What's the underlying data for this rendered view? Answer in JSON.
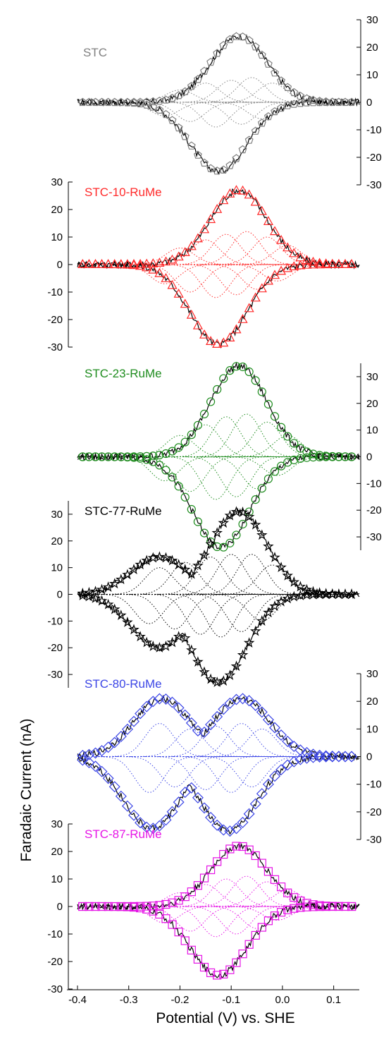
{
  "chart_data": {
    "type": "line",
    "xlabel": "Potential (V)  vs. SHE",
    "ylabel": "Faradaic Current (nA)",
    "xlim": [
      -0.4,
      0.15
    ],
    "xticks": [
      -0.4,
      -0.3,
      -0.2,
      -0.1,
      0.0,
      0.1
    ],
    "xtick_labels": [
      "-0.4",
      "-0.3",
      "-0.2",
      "-0.1",
      "0.0",
      "0.1"
    ],
    "panels": [
      {
        "name": "STC",
        "color": "#808080",
        "marker": "pentagon",
        "axis_side": "right",
        "ylim": [
          -30,
          30
        ],
        "yticks": [
          30,
          20,
          10,
          0,
          -10,
          -20,
          -30
        ],
        "ytick_labels": [
          "30",
          "20",
          "10",
          "0",
          "-10",
          "-20",
          "-30"
        ],
        "peaks": [
          {
            "e": -0.085,
            "h": 24
          }
        ],
        "reductive_peaks": [
          {
            "e": -0.125,
            "h": 25
          }
        ],
        "oxidative_components": [
          {
            "e": -0.2,
            "h": 4.5
          },
          {
            "e": -0.15,
            "h": 7
          },
          {
            "e": -0.1,
            "h": 8
          },
          {
            "e": -0.06,
            "h": 9
          },
          {
            "e": -0.02,
            "h": 7
          }
        ],
        "reductive_components": [
          {
            "e": -0.23,
            "h": 5
          },
          {
            "e": -0.18,
            "h": 7
          },
          {
            "e": -0.13,
            "h": 9
          },
          {
            "e": -0.08,
            "h": 8
          },
          {
            "e": -0.04,
            "h": 6
          }
        ]
      },
      {
        "name": "STC-10-RuMe",
        "color": "#ff2a2a",
        "marker": "triangle",
        "axis_side": "left",
        "ylim": [
          -30,
          30
        ],
        "yticks": [
          30,
          20,
          10,
          0,
          -10,
          -20,
          -30
        ],
        "ytick_labels": [
          "30",
          "20",
          "10",
          "0",
          "-10",
          "-20",
          "-30"
        ],
        "peaks": [
          {
            "e": -0.085,
            "h": 27
          }
        ],
        "reductive_peaks": [
          {
            "e": -0.125,
            "h": 29
          }
        ],
        "oxidative_components": [
          {
            "e": -0.2,
            "h": 6
          },
          {
            "e": -0.15,
            "h": 9
          },
          {
            "e": -0.11,
            "h": 11
          },
          {
            "e": -0.07,
            "h": 12
          },
          {
            "e": -0.03,
            "h": 10
          },
          {
            "e": 0.01,
            "h": 7
          }
        ],
        "reductive_components": [
          {
            "e": -0.23,
            "h": 7
          },
          {
            "e": -0.18,
            "h": 10
          },
          {
            "e": -0.13,
            "h": 12
          },
          {
            "e": -0.09,
            "h": 11
          },
          {
            "e": -0.05,
            "h": 9
          },
          {
            "e": -0.01,
            "h": 6
          }
        ]
      },
      {
        "name": "STC-23-RuMe",
        "color": "#1e8c1e",
        "marker": "circle",
        "axis_side": "right",
        "ylim": [
          -35,
          35
        ],
        "yticks": [
          30,
          20,
          10,
          0,
          -10,
          -20,
          -30
        ],
        "ytick_labels": [
          "30",
          "20",
          "10",
          "0",
          "-10",
          "-20",
          "-30"
        ],
        "peaks": [
          {
            "e": -0.085,
            "h": 34
          }
        ],
        "reductive_peaks": [
          {
            "e": -0.12,
            "h": 34
          }
        ],
        "oxidative_components": [
          {
            "e": -0.2,
            "h": 8
          },
          {
            "e": -0.15,
            "h": 12
          },
          {
            "e": -0.11,
            "h": 15
          },
          {
            "e": -0.07,
            "h": 16
          },
          {
            "e": -0.03,
            "h": 13
          },
          {
            "e": 0.01,
            "h": 8
          }
        ],
        "reductive_components": [
          {
            "e": -0.23,
            "h": 9
          },
          {
            "e": -0.18,
            "h": 13
          },
          {
            "e": -0.13,
            "h": 16
          },
          {
            "e": -0.09,
            "h": 15
          },
          {
            "e": -0.05,
            "h": 12
          },
          {
            "e": -0.01,
            "h": 7
          }
        ]
      },
      {
        "name": "STC-77-RuMe",
        "color": "#000000",
        "marker": "star",
        "axis_side": "left",
        "ylim": [
          -35,
          35
        ],
        "yticks": [
          30,
          20,
          10,
          0,
          -10,
          -20,
          -30
        ],
        "ytick_labels": [
          "30",
          "20",
          "10",
          "0",
          "-10",
          "-20",
          "-30"
        ],
        "peaks": [
          {
            "e": -0.24,
            "h": 14
          },
          {
            "e": -0.085,
            "h": 31
          }
        ],
        "reductive_peaks": [
          {
            "e": -0.24,
            "h": 20
          },
          {
            "e": -0.125,
            "h": 33
          }
        ],
        "oxidative_components": [
          {
            "e": -0.24,
            "h": 10
          },
          {
            "e": -0.19,
            "h": 12
          },
          {
            "e": -0.14,
            "h": 14
          },
          {
            "e": -0.1,
            "h": 15
          },
          {
            "e": -0.06,
            "h": 15
          },
          {
            "e": -0.02,
            "h": 11
          }
        ],
        "reductive_components": [
          {
            "e": -0.26,
            "h": 11
          },
          {
            "e": -0.21,
            "h": 13
          },
          {
            "e": -0.16,
            "h": 15
          },
          {
            "e": -0.12,
            "h": 16
          },
          {
            "e": -0.08,
            "h": 14
          },
          {
            "e": -0.04,
            "h": 10
          }
        ]
      },
      {
        "name": "STC-80-RuMe",
        "color": "#3c46e6",
        "marker": "diamond",
        "axis_side": "right",
        "ylim": [
          -30,
          30
        ],
        "yticks": [
          30,
          20,
          10,
          0,
          -10,
          -20,
          -30
        ],
        "ytick_labels": [
          "30",
          "20",
          "10",
          "0",
          "-10",
          "-20",
          "-30"
        ],
        "peaks": [
          {
            "e": -0.235,
            "h": 21
          },
          {
            "e": -0.08,
            "h": 21
          }
        ],
        "reductive_peaks": [
          {
            "e": -0.255,
            "h": 26
          },
          {
            "e": -0.105,
            "h": 27
          }
        ],
        "oxidative_components": [
          {
            "e": -0.24,
            "h": 12
          },
          {
            "e": -0.18,
            "h": 10
          },
          {
            "e": -0.13,
            "h": 11
          },
          {
            "e": -0.08,
            "h": 12
          },
          {
            "e": -0.04,
            "h": 10
          }
        ],
        "reductive_components": [
          {
            "e": -0.26,
            "h": 13
          },
          {
            "e": -0.21,
            "h": 11
          },
          {
            "e": -0.15,
            "h": 12
          },
          {
            "e": -0.1,
            "h": 13
          },
          {
            "e": -0.06,
            "h": 11
          }
        ]
      },
      {
        "name": "STC-87-RuMe",
        "color": "#e614e6",
        "marker": "square",
        "axis_side": "left",
        "ylim": [
          -30,
          30
        ],
        "yticks": [
          30,
          20,
          10,
          0,
          -10,
          -20,
          -30
        ],
        "ytick_labels": [
          "30",
          "20",
          "10",
          "0",
          "-10",
          "-20",
          "-30"
        ],
        "peaks": [
          {
            "e": -0.085,
            "h": 22
          }
        ],
        "reductive_peaks": [
          {
            "e": -0.125,
            "h": 25
          }
        ],
        "oxidative_components": [
          {
            "e": -0.2,
            "h": 5
          },
          {
            "e": -0.15,
            "h": 8
          },
          {
            "e": -0.11,
            "h": 10
          },
          {
            "e": -0.07,
            "h": 11
          },
          {
            "e": -0.03,
            "h": 9
          },
          {
            "e": 0.01,
            "h": 6
          }
        ],
        "reductive_components": [
          {
            "e": -0.23,
            "h": 6
          },
          {
            "e": -0.18,
            "h": 9
          },
          {
            "e": -0.13,
            "h": 11
          },
          {
            "e": -0.09,
            "h": 10
          },
          {
            "e": -0.05,
            "h": 8
          },
          {
            "e": -0.01,
            "h": 5
          }
        ]
      }
    ]
  }
}
